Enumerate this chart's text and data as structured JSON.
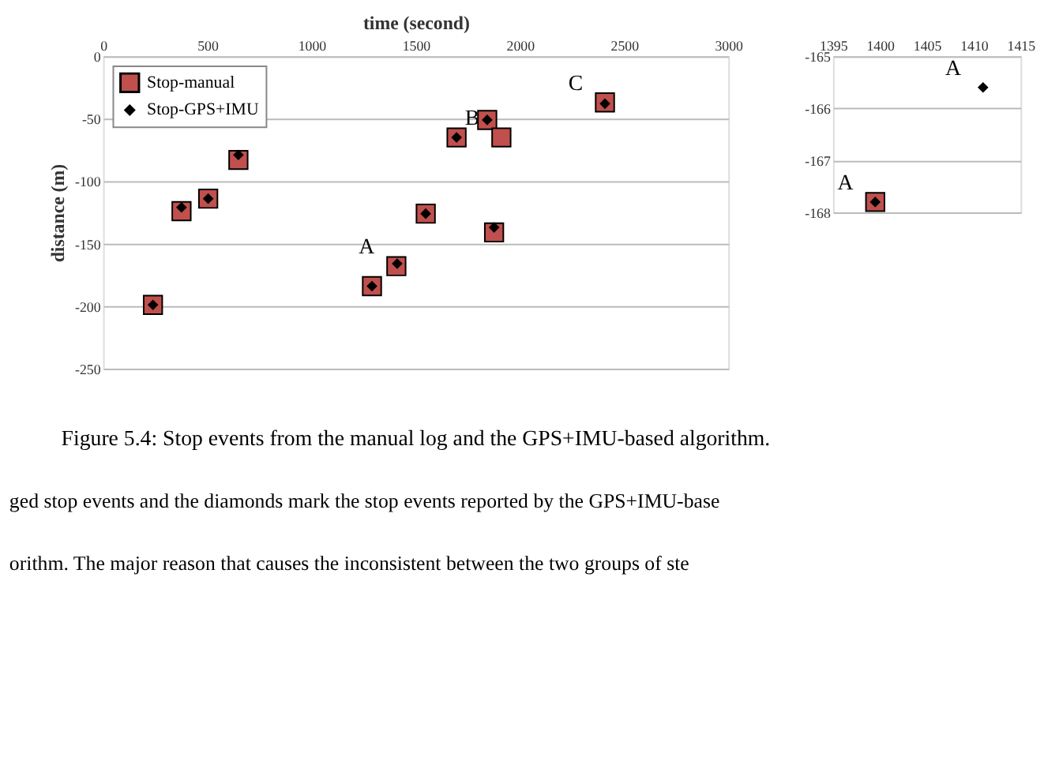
{
  "chart_data": [
    {
      "type": "scatter",
      "xlabel": "time (second)",
      "ylabel": "distance (m)",
      "xlim": [
        0,
        3000
      ],
      "xticks": [
        0,
        500,
        1000,
        1500,
        2000,
        2500,
        3000
      ],
      "ylim": [
        -250,
        0
      ],
      "yticks": [
        0,
        -50,
        -100,
        -150,
        -200,
        -250
      ],
      "grid": "y",
      "legend": "top left",
      "series": [
        {
          "name": "Stop-manual",
          "color": "#c0504d",
          "marker": "square",
          "x": [
            239,
            376,
            504,
            649,
            1290,
            1407,
            1548,
            1696,
            1843,
            1911,
            1876,
            2408
          ],
          "values": [
            -199,
            -124,
            -114,
            -83,
            -184,
            -168,
            -126,
            -65,
            -51,
            -65,
            -141,
            -37
          ]
        },
        {
          "name": "Stop-GPS+IMU",
          "color": "#000000",
          "marker": "diamond",
          "x": [
            239,
            376,
            504,
            649,
            1290,
            1411,
            1548,
            1696,
            1843,
            1876,
            2408
          ],
          "values": [
            -199,
            -121,
            -114,
            -79,
            -184,
            -166,
            -126,
            -65,
            -51,
            -137,
            -38
          ]
        }
      ],
      "annotations": [
        {
          "text": "A",
          "x": 1407,
          "y": -168
        },
        {
          "text": "B",
          "x": 1911,
          "y": -65
        },
        {
          "text": "C",
          "x": 2408,
          "y": -37
        },
        "Figure 5.4: Stop events from the manual log and the GPS+IMU-based algorithm.",
        "ged stop events and the diamonds mark the stop events reported by the GPS+IMU-base",
        "orithm. The major reason that causes the inconsistent between the two groups of ste"
      ]
    },
    {
      "type": "scatter",
      "xlim": [
        1395,
        1415
      ],
      "xticks": [
        1395,
        1400,
        1405,
        1410,
        1415
      ],
      "ylim": [
        -168,
        -165
      ],
      "yticks": [
        -165,
        -166,
        -167,
        -168
      ],
      "grid": "y",
      "series": [
        {
          "color": "#c0504d",
          "marker": "square",
          "x": [
            1399.5
          ],
          "values": [
            -167.8
          ]
        },
        {
          "color": "#000000",
          "marker": "diamond",
          "x": [
            1399.5,
            1411
          ],
          "values": [
            -167.8,
            -165.6
          ]
        }
      ],
      "annotations": [
        {
          "text": "A",
          "x": 1411,
          "y": -165.6
        },
        {
          "text": "A",
          "x": 1399.5,
          "y": -167.8
        }
      ]
    }
  ]
}
